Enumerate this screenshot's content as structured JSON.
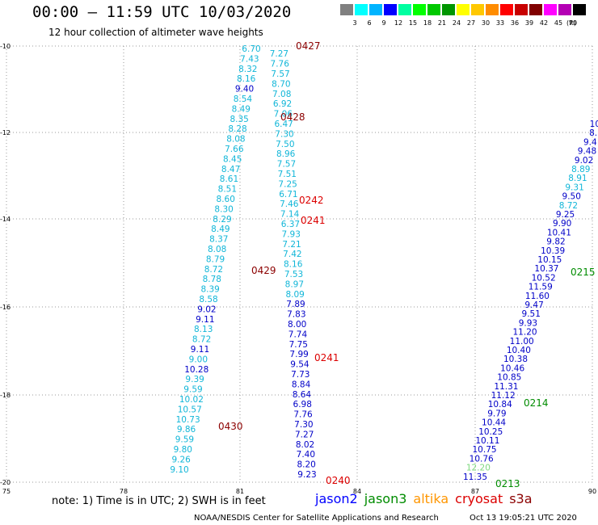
{
  "header": {
    "title": "00:00 – 11:59 UTC 10/03/2020",
    "subtitle": "12 hour collection of altimeter wave heights"
  },
  "scale": {
    "colors": [
      "#808080",
      "#00ffff",
      "#00b4ff",
      "#0000ff",
      "#00ffa0",
      "#00ff00",
      "#00c800",
      "#009600",
      "#ffff00",
      "#ffc800",
      "#ff8c00",
      "#ff0000",
      "#c80000",
      "#800000",
      "#ff00ff",
      "#b400b4",
      "#000000"
    ],
    "labels": [
      "3",
      "6",
      "9",
      "12",
      "15",
      "18",
      "21",
      "24",
      "27",
      "30",
      "33",
      "36",
      "39",
      "42",
      "45",
      "70"
    ],
    "unit": "(ft)"
  },
  "axes": {
    "x_labels": [
      "75",
      "78",
      "81",
      "84",
      "87",
      "90"
    ],
    "y_labels": [
      "-10",
      "-12",
      "-14",
      "-16",
      "-18",
      "-20"
    ]
  },
  "tracks": {
    "track1": [
      "6.70",
      "7.27",
      "7.43",
      "7.76",
      "8.32",
      "7.57",
      "8.16",
      "8.70",
      "9.40",
      "7.08",
      "8.54",
      "6.92",
      "8.49",
      "7.06",
      "8.35",
      "6.47",
      "8.28",
      "7.30",
      "8.08",
      "7.50",
      "7.66",
      "8.96",
      "8.45",
      "7.57",
      "8.47",
      "7.51",
      "8.61",
      "7.25",
      "8.51",
      "6.71",
      "8.60",
      "7.46",
      "8.30",
      "7.14",
      "8.29",
      "6.37",
      "8.49",
      "7.93",
      "8.37",
      "7.21",
      "8.08",
      "7.42",
      "8.79",
      "8.16",
      "8.72",
      "7.53",
      "8.78",
      "8.97",
      "8.39",
      "8.09",
      "8.58",
      "7.89",
      "9.02",
      "7.83",
      "9.11",
      "8.00",
      "8.13",
      "7.74",
      "8.72",
      "7.75",
      "9.11",
      "7.99",
      "9.00",
      "9.54",
      "10.28",
      "7.73",
      "9.39",
      "8.84",
      "9.59",
      "8.64",
      "10.02",
      "6.98",
      "10.57",
      "7.76",
      "10.73",
      "7.30",
      "9.86",
      "7.27",
      "9.59",
      "8.02",
      "9.80",
      "7.40",
      "9.26",
      "8.20",
      "9.10",
      "9.23"
    ],
    "track2": [
      "10.",
      "8.",
      "9.4",
      "9.48",
      "9.02",
      "8.89",
      "8.91",
      "9.31",
      "9.50",
      "8.72",
      "9.25",
      "9.90",
      "10.41",
      "9.82",
      "10.39",
      "10.15",
      "10.37",
      "10.52",
      "11.59",
      "11.60",
      "9.47",
      "9.51",
      "9.93",
      "11.20",
      "11.00",
      "10.40",
      "10.38",
      "10.46",
      "10.85",
      "11.31",
      "11.12",
      "10.84",
      "9.79",
      "10.44",
      "10.25",
      "10.11",
      "10.75",
      "10.76",
      "12.20",
      "11.35"
    ]
  },
  "pass_labels": [
    "0427",
    "0428",
    "0242",
    "0241",
    "0429",
    "0241",
    "0430",
    "0240",
    "0215",
    "0214",
    "0213"
  ],
  "legend": {
    "note": "note: 1) Time is in UTC; 2) SWH is in feet",
    "satellites": [
      {
        "name": "jason2",
        "color": "#0000ff"
      },
      {
        "name": "jason3",
        "color": "#008c00"
      },
      {
        "name": "altika",
        "color": "#ff9600"
      },
      {
        "name": "cryosat",
        "color": "#dc0000"
      },
      {
        "name": "s3a",
        "color": "#8c0000"
      }
    ]
  },
  "footer": {
    "credit": "NOAA/NESDIS Center for Satellite Applications and Research",
    "timestamp": "Oct 13 19:05:21 UTC 2020"
  }
}
